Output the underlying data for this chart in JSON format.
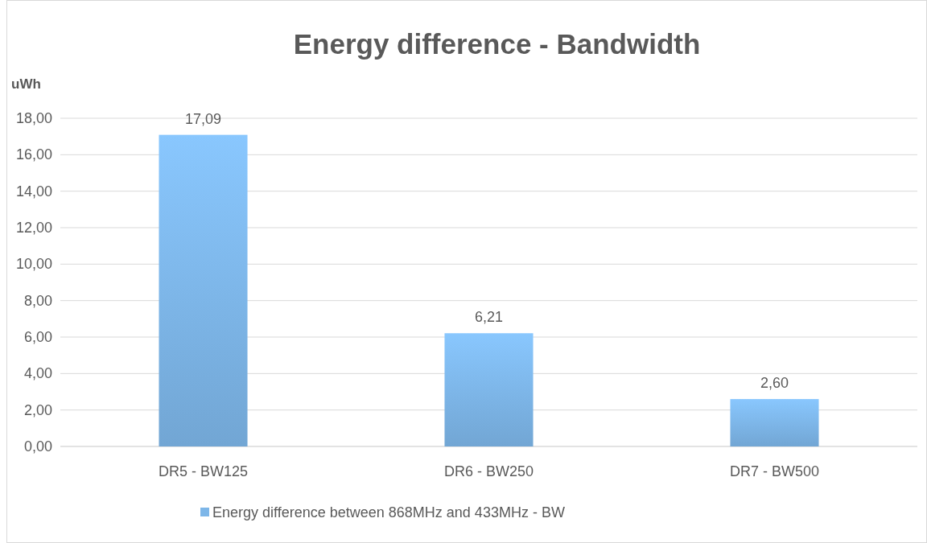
{
  "chart_data": {
    "type": "bar",
    "title": "Energy difference - Bandwidth",
    "ylabel": "uWh",
    "categories": [
      "DR5 - BW125",
      "DR6 - BW250",
      "DR7 - BW500"
    ],
    "series": [
      {
        "name": "Energy difference between 868MHz and 433MHz - BW",
        "color": "#7db6e8",
        "values": [
          17.09,
          6.21,
          2.6
        ],
        "value_labels": [
          "17,09",
          "6,21",
          "2,60"
        ]
      }
    ],
    "ylim": [
      0,
      18
    ],
    "yticks": [
      {
        "value": 0,
        "label": "0,00"
      },
      {
        "value": 2,
        "label": "2,00"
      },
      {
        "value": 4,
        "label": "4,00"
      },
      {
        "value": 6,
        "label": "6,00"
      },
      {
        "value": 8,
        "label": "8,00"
      },
      {
        "value": 10,
        "label": "10,00"
      },
      {
        "value": 12,
        "label": "12,00"
      },
      {
        "value": 14,
        "label": "14,00"
      },
      {
        "value": 16,
        "label": "16,00"
      },
      {
        "value": 18,
        "label": "18,00"
      }
    ],
    "grid": "y",
    "legend": "bottom"
  }
}
